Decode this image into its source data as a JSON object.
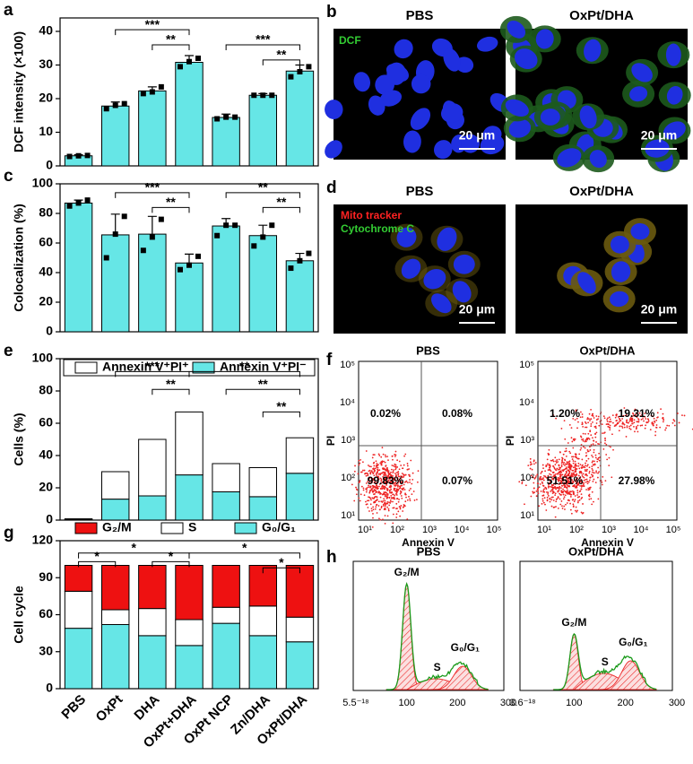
{
  "chart_data": [
    {
      "type": "bar",
      "panel": "a",
      "ylabel": "DCF intensity (×100)",
      "categories": [
        null,
        null,
        null,
        null,
        null,
        null,
        null
      ],
      "values": [
        3,
        17.8,
        22.3,
        30.8,
        14.4,
        21,
        28.2
      ],
      "errors": [
        0.3,
        1.2,
        1.2,
        2,
        1,
        0.5,
        1.8
      ],
      "points": [
        [
          2.8,
          3,
          3.1
        ],
        [
          17,
          18,
          18.5
        ],
        [
          21.5,
          22,
          23.5
        ],
        [
          29.5,
          31,
          32
        ],
        [
          14,
          14.5,
          14.5
        ],
        [
          21,
          21,
          21
        ],
        [
          26.5,
          28,
          29.5
        ]
      ],
      "color": "#66e6e6",
      "ylim": [
        0,
        44
      ],
      "yticks": [
        0,
        10,
        20,
        30,
        40
      ],
      "annotations": [
        "***",
        "**",
        "***",
        "**"
      ]
    },
    {
      "type": "bar",
      "panel": "c",
      "ylabel": "Colocalization (%)",
      "categories": [
        null,
        null,
        null,
        null,
        null,
        null,
        null
      ],
      "values": [
        87,
        65.5,
        66,
        46.5,
        71.5,
        65,
        48
      ],
      "errors": [
        2,
        14,
        12,
        6,
        5,
        7,
        5
      ],
      "points": [
        [
          85,
          87,
          89
        ],
        [
          50,
          66,
          78
        ],
        [
          55,
          64,
          76
        ],
        [
          42,
          45,
          51
        ],
        [
          65,
          72,
          72
        ],
        [
          58,
          64,
          72
        ],
        [
          43,
          48,
          53
        ]
      ],
      "color": "#66e6e6",
      "ylim": [
        0,
        100
      ],
      "yticks": [
        0,
        20,
        40,
        60,
        80,
        100
      ],
      "annotations": [
        "***",
        "**",
        "**",
        "**"
      ]
    },
    {
      "type": "stacked_bar",
      "panel": "e",
      "ylabel": "Cells (%)",
      "categories": [
        null,
        null,
        null,
        null,
        null,
        null,
        null
      ],
      "series": [
        {
          "name": "Annexin V⁺PI⁻",
          "color": "#66e6e6",
          "values": [
            0.3,
            13,
            15,
            28,
            17.5,
            14.5,
            29
          ]
        },
        {
          "name": "Annexin V⁺PI⁺",
          "color": "#ffffff",
          "values": [
            0.5,
            17,
            35,
            39,
            17.5,
            18,
            22
          ]
        }
      ],
      "ylim": [
        0,
        100
      ],
      "yticks": [
        0,
        20,
        40,
        60,
        80,
        100
      ],
      "annotations": [
        "***",
        "**",
        "**",
        "**",
        "**"
      ]
    },
    {
      "type": "stacked_bar",
      "panel": "g",
      "ylabel": "Cell cycle",
      "categories": [
        "PBS",
        "OxPt",
        "DHA",
        "OxPt+DHA",
        "OxPt NCP",
        "Zn/DHA",
        "OxPt/DHA"
      ],
      "series": [
        {
          "name": "G₀/G₁",
          "color": "#66e6e6",
          "values": [
            49,
            52,
            43,
            35,
            53,
            43,
            38
          ]
        },
        {
          "name": "S",
          "color": "#ffffff",
          "values": [
            30,
            12,
            22,
            21,
            13,
            24,
            20
          ]
        },
        {
          "name": "G₂/M",
          "color": "#ee1111",
          "values": [
            21,
            36,
            35,
            44,
            34,
            33,
            42
          ]
        }
      ],
      "ylim": [
        0,
        120
      ],
      "yticks": [
        0,
        30,
        60,
        90,
        120
      ],
      "annotations": [
        "*",
        "*",
        "*",
        "*",
        "*"
      ]
    }
  ],
  "panels": {
    "b": {
      "letter": "b",
      "titles": [
        "PBS",
        "OxPt/DHA"
      ],
      "stain": "DCF",
      "scale": "20 μm"
    },
    "d": {
      "letter": "d",
      "titles": [
        "PBS",
        "OxPt/DHA"
      ],
      "stains": [
        "Mito tracker",
        "Cytochrome C"
      ],
      "scale": "20 μm"
    },
    "f": {
      "letter": "f",
      "titles": [
        "PBS",
        "OxPt/DHA"
      ],
      "ylabel": "PI",
      "xlabel": "Annexin V",
      "ticks": [
        "10¹",
        "10²",
        "10³",
        "10⁴",
        "10⁵"
      ],
      "quadrants": [
        [
          "0.02%",
          "0.08%",
          "99.83%",
          "0.07%"
        ],
        [
          "1.20%",
          "19.31%",
          "51.51%",
          "27.98%"
        ]
      ]
    },
    "h": {
      "letter": "h",
      "titles": [
        "PBS",
        "OxPt/DHA"
      ],
      "xticks": [
        [
          "5.5⁻¹⁸",
          "100",
          "200",
          "300"
        ],
        [
          "3.6⁻¹⁸",
          "100",
          "200",
          "300"
        ]
      ],
      "peaks": [
        "G₂/M",
        "S",
        "G₀/G₁"
      ]
    }
  }
}
